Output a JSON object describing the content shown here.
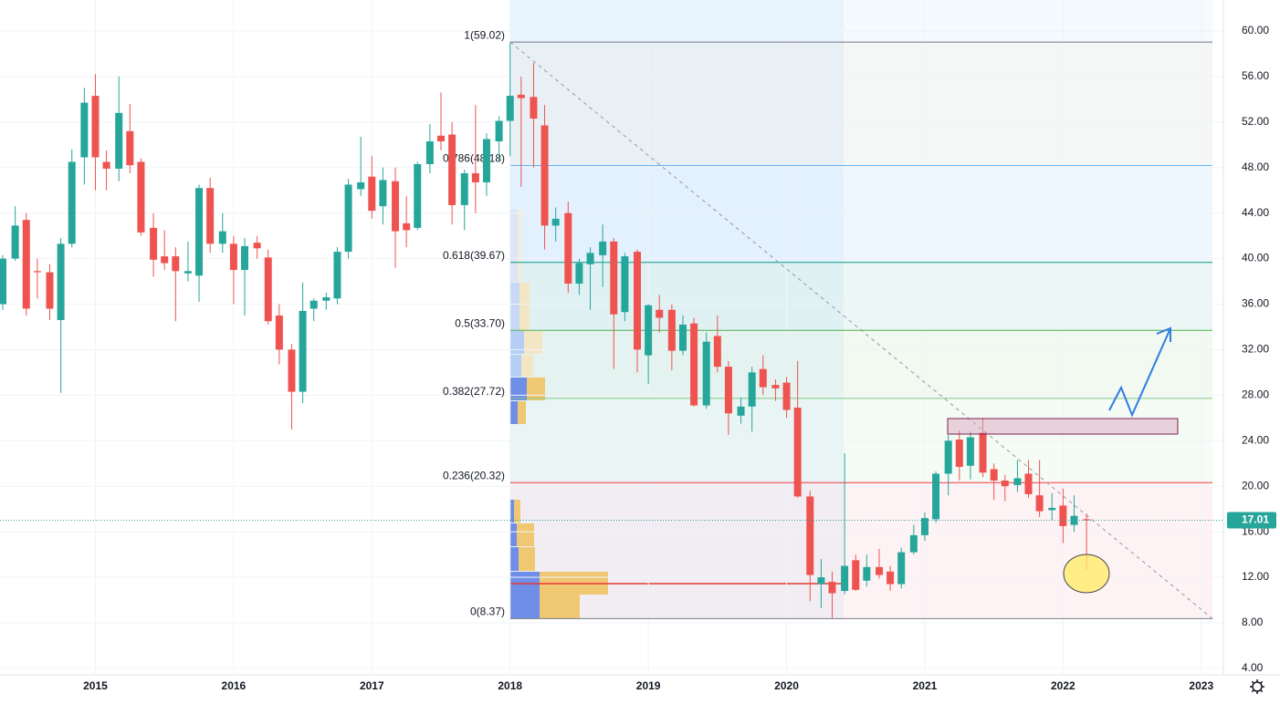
{
  "chart_data": {
    "type": "candlestick",
    "up_color": "#26a69a",
    "down_color": "#ef5350",
    "grid": true,
    "x": [
      2014.33,
      2014.42,
      2014.5,
      2014.58,
      2014.67,
      2014.75,
      2014.83,
      2014.92,
      2015,
      2015.08,
      2015.17,
      2015.25,
      2015.33,
      2015.42,
      2015.5,
      2015.58,
      2015.67,
      2015.75,
      2015.83,
      2015.92,
      2016,
      2016.08,
      2016.17,
      2016.25,
      2016.33,
      2016.42,
      2016.5,
      2016.58,
      2016.67,
      2016.75,
      2016.83,
      2016.92,
      2017,
      2017.08,
      2017.17,
      2017.25,
      2017.33,
      2017.42,
      2017.5,
      2017.58,
      2017.67,
      2017.75,
      2017.83,
      2017.92,
      2018,
      2018.08,
      2018.17,
      2018.25,
      2018.33,
      2018.42,
      2018.5,
      2018.58,
      2018.67,
      2018.75,
      2018.83,
      2018.92,
      2019,
      2019.08,
      2019.17,
      2019.25,
      2019.33,
      2019.42,
      2019.5,
      2019.58,
      2019.67,
      2019.75,
      2019.83,
      2019.92,
      2020,
      2020.08,
      2020.17,
      2020.25,
      2020.33,
      2020.42,
      2020.5,
      2020.58,
      2020.67,
      2020.75,
      2020.83,
      2020.92,
      2021,
      2021.08,
      2021.17,
      2021.25,
      2021.33,
      2021.42,
      2021.5,
      2021.58,
      2021.67,
      2021.75,
      2021.83,
      2021.92,
      2022,
      2022.08,
      2022.17
    ],
    "open": [
      36.0,
      40.0,
      43.4,
      38.9,
      38.8,
      34.6,
      41.3,
      48.9,
      54.3,
      48.5,
      47.9,
      51.2,
      48.5,
      42.7,
      40.2,
      40.2,
      38.7,
      38.5,
      46.2,
      41.3,
      41.3,
      39.0,
      41.4,
      40.1,
      35.0,
      32.0,
      28.3,
      35.6,
      36.3,
      36.5,
      40.6,
      46.1,
      47.2,
      44.6,
      46.8,
      43.1,
      42.7,
      48.3,
      50.8,
      50.9,
      44.7,
      47.5,
      46.7,
      50.3,
      52.1,
      54.4,
      54.2,
      51.7,
      42.9,
      44.0,
      37.8,
      39.5,
      40.3,
      41.5,
      35.3,
      40.6,
      31.5,
      35.5,
      35.5,
      31.9,
      34.3,
      27.1,
      33.2,
      30.5,
      26.2,
      27.0,
      30.3,
      28.9,
      29.1,
      26.9,
      19.1,
      11.4,
      11.6,
      10.8,
      13.5,
      11.7,
      12.9,
      12.5,
      11.4,
      14.2,
      15.7,
      17.1,
      21.1,
      24.1,
      21.8,
      24.7,
      21.5,
      20.5,
      20.1,
      21.1,
      19.2,
      17.9,
      18.3,
      16.6,
      17.1
    ],
    "high": [
      40.3,
      44.6,
      44.0,
      40.0,
      39.5,
      41.8,
      49.6,
      55.0,
      56.2,
      49.5,
      56.0,
      53.6,
      48.8,
      44.0,
      42.5,
      41.0,
      41.5,
      46.5,
      47.1,
      44.0,
      42.0,
      41.8,
      42.0,
      40.8,
      36.0,
      32.5,
      37.9,
      36.5,
      37.0,
      41.0,
      47.0,
      50.7,
      49.0,
      48.0,
      48.0,
      45.5,
      48.5,
      51.8,
      54.6,
      52.0,
      47.8,
      53.5,
      51.0,
      52.5,
      59.0,
      56.0,
      57.2,
      53.5,
      44.5,
      45.0,
      40.0,
      41.0,
      43.0,
      41.8,
      40.5,
      40.8,
      36.0,
      36.8,
      36.0,
      35.0,
      34.8,
      33.5,
      35.0,
      31.0,
      27.8,
      30.5,
      31.5,
      29.4,
      29.6,
      31.0,
      19.6,
      13.6,
      12.5,
      22.9,
      14.0,
      14.0,
      14.5,
      13.0,
      14.6,
      16.6,
      17.7,
      21.3,
      24.5,
      24.9,
      24.8,
      26.0,
      22.0,
      21.0,
      22.3,
      22.3,
      22.3,
      19.4,
      19.8,
      19.2,
      17.6
    ],
    "low": [
      35.5,
      39.8,
      35.0,
      36.5,
      34.6,
      28.2,
      41.0,
      46.5,
      46.0,
      46.0,
      46.8,
      47.5,
      42.0,
      38.4,
      39.0,
      34.5,
      38.0,
      36.2,
      40.5,
      40.5,
      36.0,
      35.0,
      40.0,
      34.2,
      30.7,
      25.0,
      27.3,
      34.5,
      35.5,
      36.0,
      40.0,
      45.5,
      43.5,
      43.0,
      39.2,
      41.0,
      42.5,
      47.5,
      49.5,
      43.0,
      42.5,
      44.0,
      45.5,
      48.5,
      49.0,
      46.3,
      48.0,
      40.8,
      41.5,
      37.0,
      36.8,
      35.5,
      37.5,
      30.3,
      34.5,
      30.0,
      29.0,
      33.5,
      30.2,
      31.5,
      27.0,
      26.8,
      30.0,
      24.5,
      25.5,
      24.8,
      28.0,
      27.5,
      26.0,
      19.0,
      9.9,
      9.3,
      8.4,
      10.5,
      10.8,
      11.2,
      11.9,
      10.8,
      11.0,
      14.0,
      15.2,
      16.8,
      19.2,
      20.5,
      20.6,
      20.8,
      18.8,
      18.7,
      19.5,
      19.0,
      17.3,
      17.0,
      15.0,
      16.0,
      12.7
    ],
    "close": [
      40.0,
      42.9,
      35.6,
      38.8,
      35.6,
      41.3,
      48.5,
      53.7,
      48.9,
      47.9,
      52.8,
      48.2,
      42.3,
      39.9,
      39.6,
      38.9,
      38.9,
      46.2,
      41.3,
      42.4,
      39.0,
      41.1,
      40.9,
      34.5,
      32.0,
      28.3,
      35.4,
      36.3,
      36.6,
      40.6,
      46.5,
      46.7,
      44.2,
      46.9,
      42.4,
      42.5,
      48.3,
      50.3,
      50.3,
      44.7,
      47.5,
      46.7,
      50.5,
      52.1,
      54.3,
      54.1,
      52.3,
      42.9,
      43.5,
      37.8,
      39.6,
      40.5,
      41.5,
      35.1,
      40.2,
      32.0,
      35.9,
      34.8,
      31.9,
      34.2,
      27.1,
      32.7,
      30.5,
      26.4,
      27.0,
      30.0,
      28.7,
      28.6,
      26.7,
      19.1,
      12.2,
      12.0,
      10.6,
      13.0,
      10.9,
      12.9,
      12.2,
      11.4,
      14.2,
      15.7,
      17.2,
      21.1,
      24.0,
      21.7,
      24.3,
      21.2,
      20.5,
      20.0,
      20.7,
      19.3,
      17.8,
      18.1,
      16.5,
      17.4,
      17.01
    ],
    "xlim": [
      2014.31,
      2023.16
    ],
    "xticks": [
      2015,
      2016,
      2017,
      2018,
      2019,
      2020,
      2021,
      2022,
      2023
    ],
    "ylim": [
      3.43,
      62.72
    ],
    "yticks": [
      {
        "value": 4,
        "label": "4.00"
      },
      {
        "value": 8,
        "label": "8.00"
      },
      {
        "value": 12,
        "label": "12.00"
      },
      {
        "value": 16,
        "label": "16.00"
      },
      {
        "value": 20,
        "label": "20.00"
      },
      {
        "value": 24,
        "label": "24.00"
      },
      {
        "value": 28,
        "label": "28.00"
      },
      {
        "value": 32,
        "label": "32.00"
      },
      {
        "value": 36,
        "label": "36.00"
      },
      {
        "value": 40,
        "label": "40.00"
      },
      {
        "value": 44,
        "label": "44.00"
      },
      {
        "value": 48,
        "label": "48.00"
      },
      {
        "value": 52,
        "label": "52.00"
      },
      {
        "value": 56,
        "label": "56.00"
      },
      {
        "value": 60,
        "label": "60.00"
      }
    ],
    "fibonacci": [
      {
        "value": 59.02,
        "label": "1(59.02)",
        "color": "#787b86",
        "fill": "rgba(120,123,134,0.07)"
      },
      {
        "value": 48.18,
        "label": "0.786(48.18)",
        "color": "#64b5f6",
        "fill": "rgba(100,181,246,0.10)"
      },
      {
        "value": 39.67,
        "label": "0.618(39.67)",
        "color": "#089981",
        "fill": "rgba(8,153,129,0.08)"
      },
      {
        "value": 33.7,
        "label": "0.5(33.70)",
        "color": "#4caf50",
        "fill": "rgba(76,175,80,0.08)"
      },
      {
        "value": 27.72,
        "label": "0.382(27.72)",
        "color": "#81c784",
        "fill": "rgba(129,199,132,0.08)"
      },
      {
        "value": 20.32,
        "label": "0.236(20.32)",
        "color": "#f23645",
        "fill": "rgba(242,54,69,0.06)"
      },
      {
        "value": 8.37,
        "label": "0(8.37)",
        "color": "#787b86"
      }
    ],
    "last_price": {
      "value": 17.01,
      "label": "17.01",
      "color": "#26a69a"
    }
  }
}
